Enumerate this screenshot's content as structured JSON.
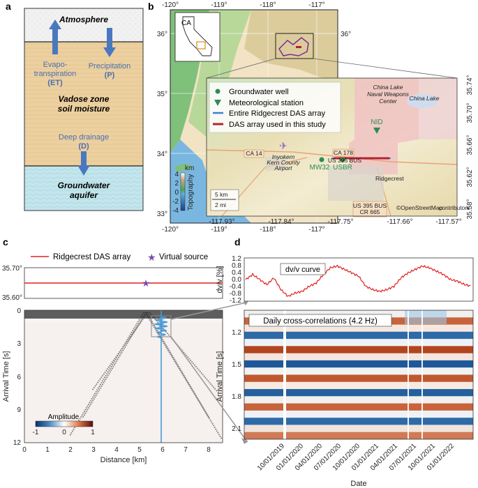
{
  "panels": {
    "a": {
      "label": "a",
      "atmosphere": "Atmosphere",
      "et_line1": "Evapo-",
      "et_line2": "transpiration",
      "et_abbr": "(ET)",
      "p_line1": "Precipitation",
      "p_abbr": "(P)",
      "vadose_line1": "Vadose zone",
      "vadose_line2": "soil moisture",
      "dd_line1": "Deep drainage",
      "dd_abbr": "(D)",
      "gw_line1": "Groundwater",
      "gw_line2": "aquifer"
    },
    "b": {
      "label": "b",
      "lon_ticks": [
        "-120°",
        "-119°",
        "-118°",
        "-117°"
      ],
      "lat_ticks": [
        "36°",
        "35°",
        "34°",
        "33°"
      ],
      "right_lat_tick": "36°",
      "inset_state": "CA",
      "colorbar_title": "km",
      "colorbar_ticks": [
        "4",
        "2",
        "0",
        "-2",
        "-4"
      ],
      "colorbar_label": "Topography",
      "legend": [
        {
          "label": "Groundwater well",
          "color": "#2e8b57"
        },
        {
          "label": "Meteorological station",
          "color": "#2e8b57"
        },
        {
          "label": "Entire Ridgecrest DAS array",
          "color": "#3a7fd5"
        },
        {
          "label": "DAS array used in this study",
          "color": "#b22234"
        }
      ],
      "zoom_lon_ticks": [
        "-117.93°",
        "-117.84°",
        "-117.75°",
        "-117.66°",
        "-117.57°"
      ],
      "zoom_lat_ticks": [
        "35.74°",
        "35.70°",
        "35.66°",
        "35.62°",
        "35.58°"
      ],
      "places": {
        "china_lake_center_1": "China Lake",
        "china_lake_center_2": "Naval Weapons",
        "china_lake_center_3": "Center",
        "china_lake": "China Lake",
        "nid": "NID",
        "mw32": "MW32",
        "usbr": "USBR",
        "ridgecrest": "Ridgecrest",
        "airport_1": "Inyokern",
        "airport_2": "Kern County",
        "airport_3": "Airport",
        "ca14": "CA 14",
        "ca178": "CA 178",
        "us395bus": "US 395 BUS",
        "us395bus_b": "US 395 BUS",
        "cr665": "CR 665"
      },
      "scale_km": "5 km",
      "scale_mi": "2 mi",
      "attribution_mark": "©OpenStreetMap",
      "attribution_rest": " contributors"
    },
    "c": {
      "label": "c",
      "legend_line": "Ridgecrest DAS array",
      "legend_star": "Virtual source",
      "top_lat_ticks": [
        "35.70°",
        "35.60°"
      ],
      "y_ticks": [
        "0",
        "3",
        "6",
        "9",
        "12"
      ],
      "x_ticks": [
        "0",
        "1",
        "2",
        "3",
        "4",
        "5",
        "6",
        "7",
        "8"
      ],
      "ylabel": "Arrival Time [s]",
      "xlabel": "Distance [km]",
      "colorbar_title": "Amplitude",
      "colorbar_ticks": [
        "-1",
        "0",
        "1"
      ]
    },
    "d": {
      "label": "d",
      "top_title": "dv/v curve",
      "top_ylabel": "dv/v [%]",
      "top_y_ticks": [
        "1.2",
        "0.8",
        "0.4",
        "0.0",
        "-0.4",
        "-0.8",
        "-1.2"
      ],
      "main_title": "Daily cross-correlations (4.2 Hz)",
      "ylabel": "Arrival Time [s]",
      "y_ticks": [
        "1.2",
        "1.5",
        "1.8",
        "2.1"
      ],
      "x_ticks": [
        "10/01/2019",
        "01/01/2020",
        "04/01/2020",
        "07/01/2020",
        "10/01/2020",
        "01/01/2021",
        "04/01/2021",
        "07/01/2021",
        "10/01/2021",
        "01/01/2022"
      ],
      "xlabel": "Date"
    }
  },
  "chart_data": [
    {
      "type": "line",
      "title": "dv/v curve",
      "ylabel": "dv/v [%]",
      "xlabel": "Date",
      "ylim": [
        -1.2,
        1.2
      ],
      "series": [
        {
          "name": "dv/v",
          "x": [
            "2019-08",
            "2019-09",
            "2019-10",
            "2019-11",
            "2019-12",
            "2020-01",
            "2020-02",
            "2020-03",
            "2020-04",
            "2020-05",
            "2020-06",
            "2020-07",
            "2020-08",
            "2020-09",
            "2020-10",
            "2020-11",
            "2020-12",
            "2021-01",
            "2021-02",
            "2021-03",
            "2021-04",
            "2021-05",
            "2021-06",
            "2021-07",
            "2021-08",
            "2021-09",
            "2021-10",
            "2021-11",
            "2021-12",
            "2022-01",
            "2022-02",
            "2022-03",
            "2022-04"
          ],
          "values": [
            0.0,
            0.3,
            0.0,
            -0.3,
            0.1,
            -0.6,
            -1.0,
            -0.8,
            -0.7,
            -0.4,
            -0.2,
            0.3,
            0.7,
            0.8,
            0.6,
            0.4,
            0.2,
            -0.4,
            -0.6,
            -0.7,
            -0.6,
            -0.4,
            0.1,
            0.4,
            0.6,
            0.8,
            0.7,
            0.5,
            0.3,
            0.0,
            -0.1,
            -0.3,
            -0.4
          ]
        }
      ]
    }
  ]
}
